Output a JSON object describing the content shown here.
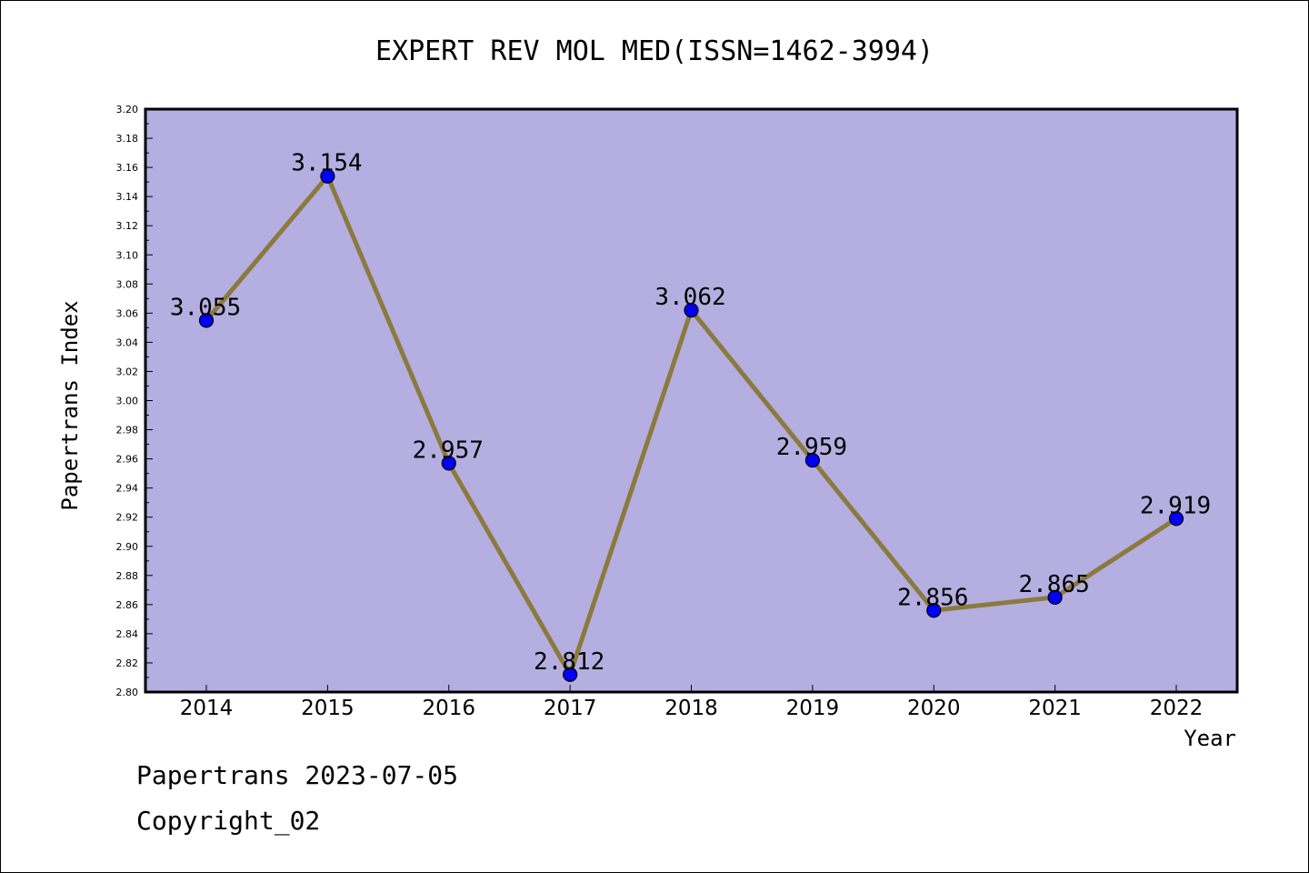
{
  "chart_data": {
    "type": "line",
    "title": "EXPERT REV MOL MED(ISSN=1462-3994)",
    "xlabel": "Year",
    "ylabel": "Papertrans Index",
    "categories": [
      "2014",
      "2015",
      "2016",
      "2017",
      "2018",
      "2019",
      "2020",
      "2021",
      "2022"
    ],
    "values": [
      3.055,
      3.154,
      2.957,
      2.812,
      3.062,
      2.959,
      2.856,
      2.865,
      2.919
    ],
    "data_labels": [
      "3.055",
      "3.154",
      "2.957",
      "2.812",
      "3.062",
      "2.959",
      "2.856",
      "2.865",
      "2.919"
    ],
    "ylim": [
      2.8,
      3.2
    ],
    "ytick_labels": [
      "2.80",
      "2.82",
      "2.84",
      "2.86",
      "2.88",
      "2.90",
      "2.92",
      "2.94",
      "2.96",
      "2.98",
      "3.00",
      "3.02",
      "3.04",
      "3.06",
      "3.08",
      "3.10",
      "3.12",
      "3.14",
      "3.16",
      "3.18",
      "3.20"
    ],
    "grid": false,
    "legend": "none",
    "colors": {
      "plot_background": "#b5aee1",
      "line": "#8b7a3e",
      "marker": "#0000ff"
    }
  },
  "footer": {
    "line1": "Papertrans 2023-07-05",
    "line2": "Copyright_02"
  }
}
